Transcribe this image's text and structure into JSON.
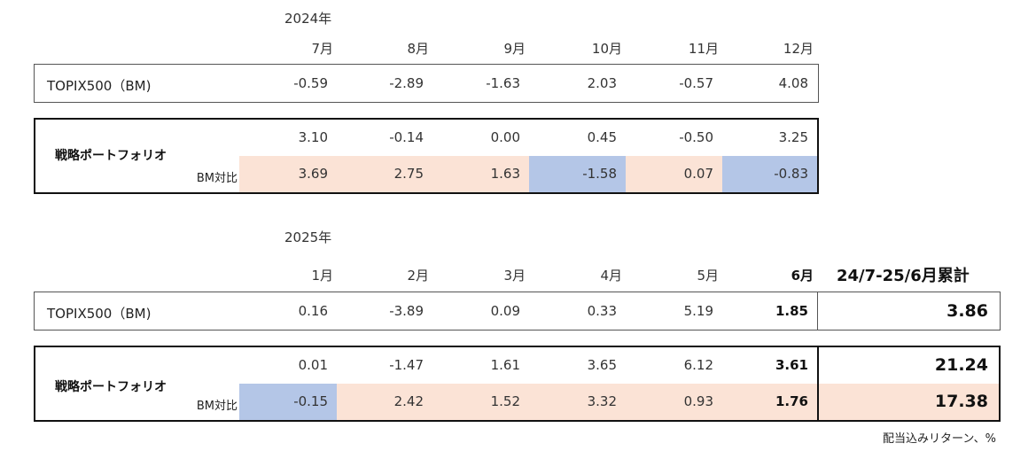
{
  "year_2024": "2024年",
  "year_2025": "2025年",
  "months_2024": [
    "7月",
    "8月",
    "9月",
    "10月",
    "11月",
    "12月"
  ],
  "months_2025": [
    "1月",
    "2月",
    "3月",
    "4月",
    "5月",
    "6月"
  ],
  "cumulative_header": "24/7-25/6月累計",
  "bm_label": "TOPIX500（BM)",
  "strategy_label": "戦略ポートフォリオ",
  "relative_label": "BM対比",
  "rows_2024": {
    "bm": [
      "-0.59",
      "-2.89",
      "-1.63",
      "2.03",
      "-0.57",
      "4.08"
    ],
    "strategy": [
      "3.10",
      "-0.14",
      "0.00",
      "0.45",
      "-0.50",
      "3.25"
    ],
    "relative": [
      "3.69",
      "2.75",
      "1.63",
      "-1.58",
      "0.07",
      "-0.83"
    ]
  },
  "rows_2025": {
    "bm": [
      "0.16",
      "-3.89",
      "0.09",
      "0.33",
      "5.19",
      "1.85"
    ],
    "strategy": [
      "0.01",
      "-1.47",
      "1.61",
      "3.65",
      "6.12",
      "3.61"
    ],
    "relative": [
      "-0.15",
      "2.42",
      "1.52",
      "3.32",
      "0.93",
      "1.76"
    ]
  },
  "cumulative": {
    "bm": "3.86",
    "strategy": "21.24",
    "relative": "17.38"
  },
  "colors": {
    "positive": "#fbe3d6",
    "negative": "#b4c6e7"
  },
  "footnote": "配当込みリターン、%"
}
